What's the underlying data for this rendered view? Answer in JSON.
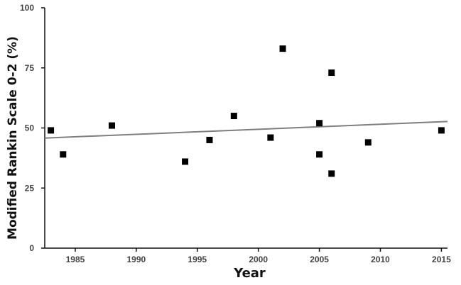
{
  "chart_data": {
    "type": "scatter",
    "title": "",
    "xlabel": "Year",
    "ylabel": "Modified Rankin Scale 0-2 (%)",
    "xlim": [
      1982.5,
      2015.5
    ],
    "ylim": [
      0,
      100
    ],
    "x_ticks": [
      1985,
      1990,
      1995,
      2000,
      2005,
      2010,
      2015
    ],
    "y_ticks": [
      0,
      25,
      50,
      75,
      100
    ],
    "grid": false,
    "legend": "none",
    "series": [
      {
        "marker": "square",
        "color": "#000000",
        "points": [
          {
            "x": 1983,
            "y": 49
          },
          {
            "x": 1984,
            "y": 39
          },
          {
            "x": 1988,
            "y": 51
          },
          {
            "x": 1994,
            "y": 36
          },
          {
            "x": 1996,
            "y": 45
          },
          {
            "x": 1998,
            "y": 55
          },
          {
            "x": 2001,
            "y": 46
          },
          {
            "x": 2002,
            "y": 83
          },
          {
            "x": 2005,
            "y": 52
          },
          {
            "x": 2005,
            "y": 39
          },
          {
            "x": 2006,
            "y": 73
          },
          {
            "x": 2006,
            "y": 31
          },
          {
            "x": 2009,
            "y": 44
          },
          {
            "x": 2015,
            "y": 49
          }
        ]
      }
    ],
    "trendline": {
      "type": "linear",
      "color": "#7f7f7f",
      "x": [
        1982.5,
        2015.5
      ],
      "y": [
        45.8,
        52.7
      ]
    }
  }
}
